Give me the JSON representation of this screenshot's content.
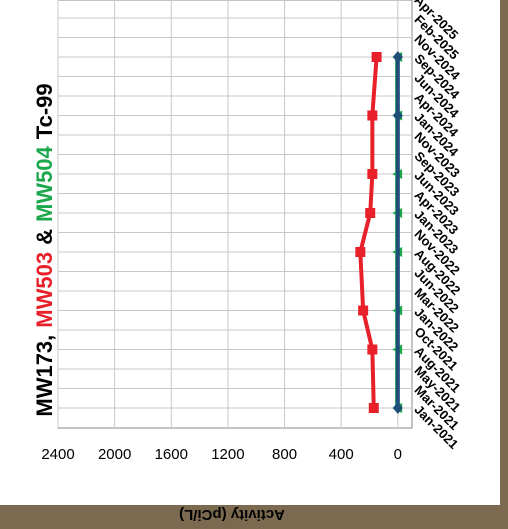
{
  "chart_data": {
    "type": "line",
    "title_parts": [
      "MW173,",
      "MW503",
      "&",
      "MW504",
      "Tc-99"
    ],
    "title_colors": [
      "#000000",
      "#e8202a",
      "#000000",
      "#1aa84a",
      "#000000"
    ],
    "y_label": "Activity (pCi/L)",
    "categories": [
      "Jan-2021",
      "Mar-2021",
      "May-2021",
      "Aug-2021",
      "Oct-2021",
      "Jan-2022",
      "Mar-2022",
      "Jun-2022",
      "Aug-2022",
      "Nov-2022",
      "Jan-2023",
      "Apr-2023",
      "Jun-2023",
      "Sep-2023",
      "Nov-2023",
      "Jan-2024",
      "Apr-2024",
      "Jun-2024",
      "Sep-2024",
      "Nov-2024",
      "Feb-2025",
      "Apr-2025"
    ],
    "series": [
      {
        "name": "MW503",
        "color": "#e8202a",
        "marker": "square",
        "x": [
          "Jan-2021",
          "Aug-2021",
          "Jan-2022",
          "Aug-2022",
          "Jan-2023",
          "Jun-2023",
          "Jan-2024",
          "Sep-2024"
        ],
        "values": [
          170,
          180,
          245,
          265,
          195,
          180,
          180,
          150
        ]
      },
      {
        "name": "MW504",
        "color": "#1aa84a",
        "marker": "triangle",
        "x": [
          "Jan-2021",
          "Aug-2021",
          "Jan-2022",
          "Aug-2022",
          "Jan-2023",
          "Jun-2023",
          "Jan-2024",
          "Sep-2024"
        ],
        "values": [
          5,
          5,
          5,
          5,
          5,
          5,
          5,
          5
        ]
      },
      {
        "name": "MW173",
        "color": "#1f4e79",
        "marker": "diamond",
        "x": [
          "Jan-2021",
          "Jan-2024",
          "Sep-2024"
        ],
        "values": [
          0,
          0,
          0
        ]
      }
    ],
    "ylim": [
      -100,
      2400
    ],
    "yticks": [
      0,
      400,
      800,
      1200,
      1600,
      2000,
      2400
    ],
    "grid": true
  }
}
